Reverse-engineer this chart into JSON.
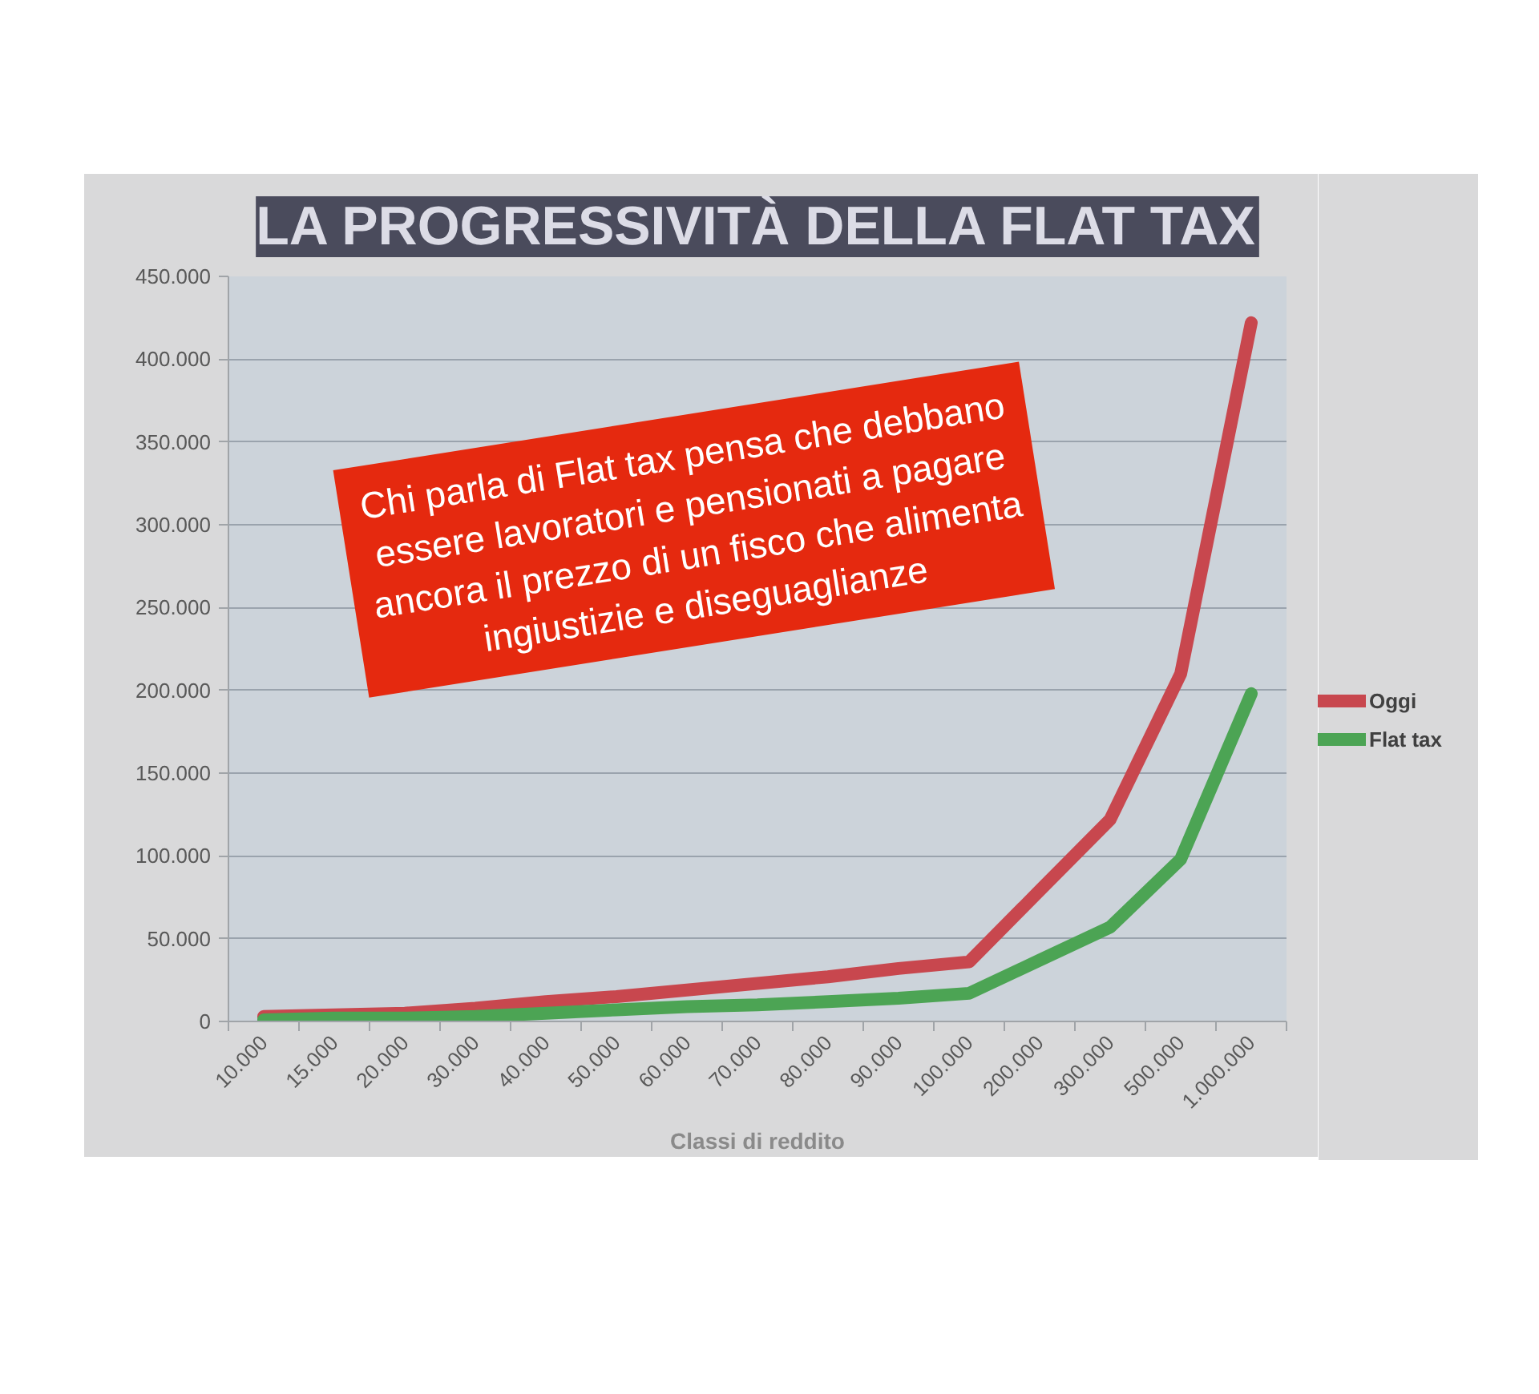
{
  "chart_data": {
    "type": "line",
    "title": "LA PROGRESSIVITÀ DELLA FLAT TAX",
    "xlabel": "Classi di reddito",
    "categories": [
      "10.000",
      "15.000",
      "20.000",
      "30.000",
      "40.000",
      "50.000",
      "60.000",
      "70.000",
      "80.000",
      "90.000",
      "100.000",
      "200.000",
      "300.000",
      "500.000",
      "1.000.000"
    ],
    "series": [
      {
        "name": "Oggi",
        "color": "#c8474e",
        "values": [
          3000,
          4000,
          5000,
          8000,
          12000,
          15000,
          19000,
          23000,
          27000,
          32000,
          36000,
          79000,
          122000,
          210000,
          422000
        ]
      },
      {
        "name": "Flat tax",
        "color": "#4ca454",
        "values": [
          1000,
          2000,
          2000,
          3000,
          5000,
          7000,
          9000,
          10000,
          12000,
          14000,
          17000,
          37000,
          57000,
          98000,
          198000
        ]
      }
    ],
    "ylim": [
      0,
      450000
    ],
    "yticks": [
      0,
      {
        "value": 50000,
        "label": "50.000"
      },
      {
        "value": 100000,
        "label": "100.000"
      },
      {
        "value": 150000,
        "label": "150.000"
      },
      {
        "value": 200000,
        "label": "200.000"
      },
      {
        "value": 250000,
        "label": "250.000"
      },
      {
        "value": 300000,
        "label": "300.000"
      },
      {
        "value": 350000,
        "label": "350.000"
      },
      {
        "value": 400000,
        "label": "400.000"
      },
      {
        "value": 450000,
        "label": "450.000"
      }
    ],
    "grid": "y",
    "legend": "right",
    "line_style": "solid",
    "annotations": [
      "Chi parla di Flat tax pensa che debbano essere lavoratori e pensionati a pagare ancora il prezzo di un fisco che alimenta ingiustizie e diseguaglianze"
    ]
  }
}
